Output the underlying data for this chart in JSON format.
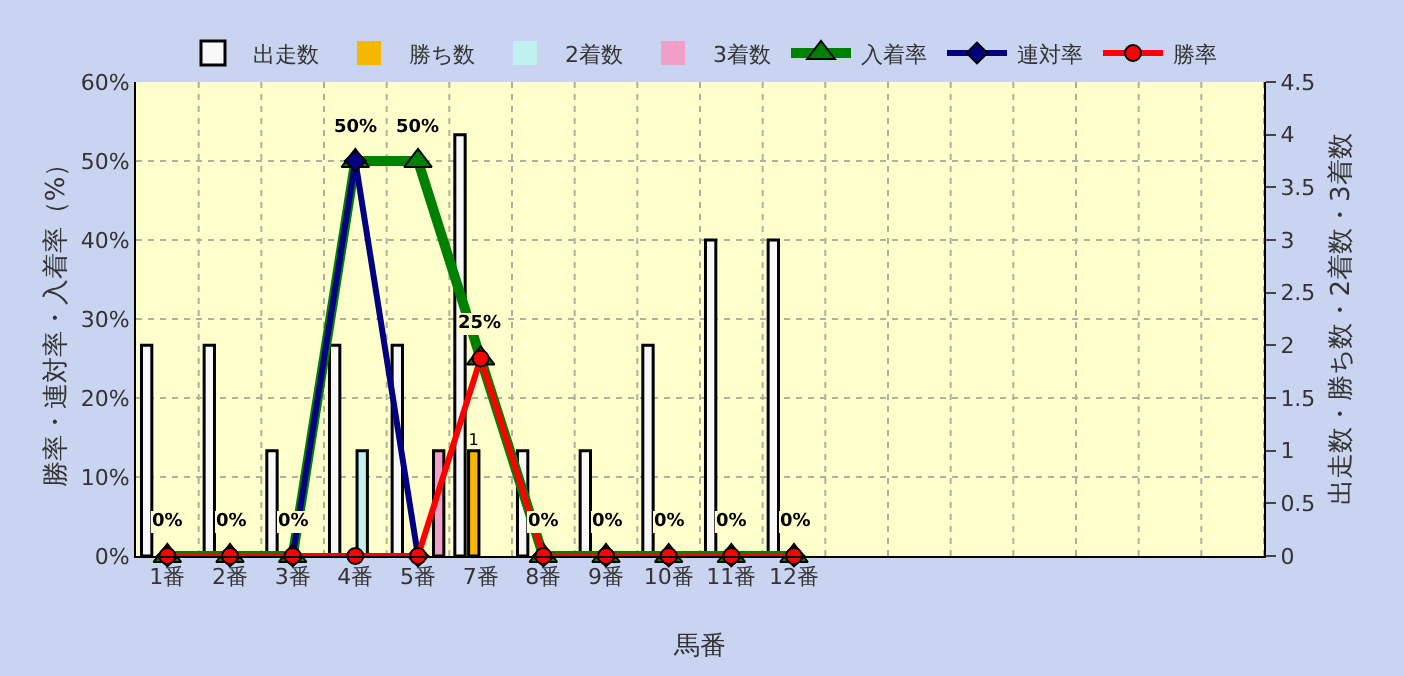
{
  "chart_data": {
    "type": "bar",
    "xlabel": "馬番",
    "ylabel": "勝率・連対率・入着率（%）",
    "y2label": "出走数・勝ち数・2着数・3着数",
    "categories": [
      "1番",
      "2番",
      "3番",
      "4番",
      "5番",
      "7番",
      "8番",
      "9番",
      "10番",
      "11番",
      "12番",
      null,
      null,
      null,
      null,
      null,
      null,
      null
    ],
    "ylim": [
      0,
      60
    ],
    "yticks": [
      {
        "value": 0,
        "label": "0%"
      },
      {
        "value": 10,
        "label": "10%"
      },
      {
        "value": 20,
        "label": "20%"
      },
      {
        "value": 30,
        "label": "30%"
      },
      {
        "value": 40,
        "label": "40%"
      },
      {
        "value": 50,
        "label": "50%"
      },
      {
        "value": 60,
        "label": "60%"
      }
    ],
    "y2lim": [
      0,
      4.5
    ],
    "y2ticks": [
      0,
      0.5,
      1,
      1.5,
      2,
      2.5,
      3,
      3.5,
      4,
      4.5
    ],
    "grid": true,
    "legend": "top",
    "series": [
      {
        "name": "出走数",
        "axis": "y2",
        "color": "#f8f8f8",
        "values": [
          2,
          2,
          1,
          2,
          2,
          4,
          1,
          1,
          2,
          3,
          3,
          null,
          null,
          null,
          null,
          null,
          null,
          null
        ]
      },
      {
        "name": "勝ち数",
        "axis": "y2",
        "color": "#f5b800",
        "values": [
          0,
          0,
          0,
          0,
          0,
          1,
          0,
          0,
          0,
          0,
          0,
          null,
          null,
          null,
          null,
          null,
          null,
          null
        ],
        "value_labels": [
          null,
          null,
          null,
          null,
          null,
          "1",
          null,
          null,
          null,
          null,
          null,
          null,
          null,
          null,
          null,
          null,
          null,
          null
        ]
      },
      {
        "name": "2着数",
        "axis": "y2",
        "color": "#c0f0f0",
        "values": [
          0,
          0,
          0,
          1,
          0,
          0,
          0,
          0,
          0,
          0,
          0,
          null,
          null,
          null,
          null,
          null,
          null,
          null
        ]
      },
      {
        "name": "3着数",
        "axis": "y2",
        "color": "#f0a0c8",
        "values": [
          0,
          0,
          0,
          0,
          1,
          0,
          0,
          0,
          0,
          0,
          0,
          null,
          null,
          null,
          null,
          null,
          null,
          null
        ]
      },
      {
        "name": "入着率",
        "type": "line",
        "axis": "y",
        "color": "#008000",
        "marker": "triangle",
        "values": [
          0,
          0,
          0,
          50,
          50,
          25,
          0,
          0,
          0,
          0,
          0,
          null,
          null,
          null,
          null,
          null,
          null,
          null
        ],
        "value_labels": [
          "0%",
          "0%",
          "0%",
          "50%",
          "50%",
          "25%",
          "0%",
          "0%",
          "0%",
          "0%",
          "0%",
          null,
          null,
          null,
          null,
          null,
          null,
          null
        ]
      },
      {
        "name": "連対率",
        "type": "line",
        "axis": "y",
        "color": "#000080",
        "marker": "diamond",
        "values": [
          0,
          0,
          0,
          50,
          0,
          null,
          0,
          0,
          0,
          0,
          0,
          null,
          null,
          null,
          null,
          null,
          null,
          null
        ]
      },
      {
        "name": "勝率",
        "type": "line",
        "axis": "y",
        "color": "#ff0000",
        "marker": "circle",
        "values": [
          0,
          0,
          0,
          0,
          0,
          25,
          0,
          0,
          0,
          0,
          0,
          null,
          null,
          null,
          null,
          null,
          null,
          null
        ]
      }
    ]
  }
}
